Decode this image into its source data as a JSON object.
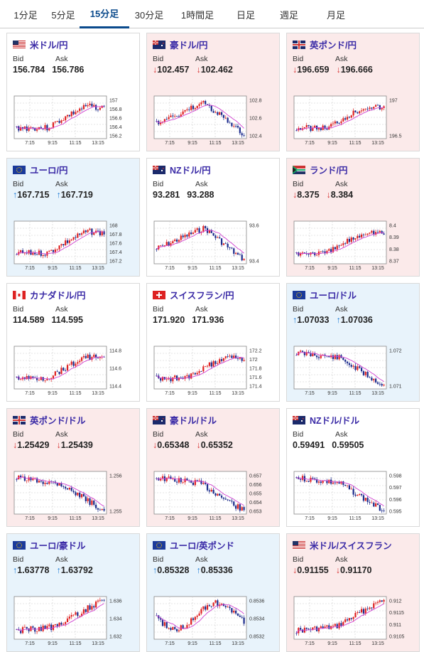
{
  "tabs": [
    {
      "label": "1分足",
      "active": false
    },
    {
      "label": "5分足",
      "active": false
    },
    {
      "label": "15分足",
      "active": true
    },
    {
      "label": "30分足",
      "active": false
    },
    {
      "label": "1時間足",
      "active": false
    },
    {
      "label": "日足",
      "active": false
    },
    {
      "label": "週足",
      "active": false
    },
    {
      "label": "月足",
      "active": false
    }
  ],
  "colors": {
    "up_bg": "#e8f3fb",
    "down_bg": "#fbeaea",
    "title": "#3a2aa6",
    "up": "#1e7bd6",
    "down": "#d63030",
    "candle_up": "#e02020",
    "candle_down": "#1a2a8c",
    "ma": "#d040d0"
  },
  "labels": {
    "bid": "Bid",
    "ask": "Ask"
  },
  "cards": [
    {
      "name": "米ドル/円",
      "flag": "us",
      "bid": "156.784",
      "ask": "156.786",
      "dir": "none",
      "bg": "neutral",
      "yticks": [
        "157",
        "156.8",
        "156.6",
        "156.4",
        "156.2"
      ],
      "xticks": [
        "7:15",
        "9:15",
        "11:15",
        "13:15"
      ],
      "trend": "rise"
    },
    {
      "name": "豪ドル/円",
      "flag": "au",
      "bid": "102.457",
      "ask": "102.462",
      "dir": "down",
      "bg": "down",
      "yticks": [
        "102.8",
        "102.6",
        "102.4"
      ],
      "xticks": [
        "7:15",
        "9:15",
        "11:15",
        "13:15"
      ],
      "trend": "peak"
    },
    {
      "name": "英ポンド/円",
      "flag": "gb",
      "bid": "196.659",
      "ask": "196.666",
      "dir": "down",
      "bg": "down",
      "yticks": [
        "197",
        "196.5"
      ],
      "xticks": [
        "7:15",
        "9:15",
        "11:15",
        "13:15"
      ],
      "trend": "rise"
    },
    {
      "name": "ユーロ/円",
      "flag": "eu",
      "bid": "167.715",
      "ask": "167.719",
      "dir": "up",
      "bg": "up",
      "yticks": [
        "168",
        "167.8",
        "167.6",
        "167.4",
        "167.2"
      ],
      "xticks": [
        "7:15",
        "9:15",
        "11:15",
        "13:15"
      ],
      "trend": "rise"
    },
    {
      "name": "NZドル/円",
      "flag": "nz",
      "bid": "93.281",
      "ask": "93.288",
      "dir": "none",
      "bg": "neutral",
      "yticks": [
        "93.6",
        "93.4"
      ],
      "xticks": [
        "7:15",
        "9:15",
        "11:15",
        "13:15"
      ],
      "trend": "peak"
    },
    {
      "name": "ランド/円",
      "flag": "za",
      "bid": "8.375",
      "ask": "8.384",
      "dir": "down",
      "bg": "down",
      "yticks": [
        "8.4",
        "8.39",
        "8.38",
        "8.37"
      ],
      "xticks": [
        "7:15",
        "9:15",
        "11:15",
        "13:15"
      ],
      "trend": "rise"
    },
    {
      "name": "カナダドル/円",
      "flag": "ca",
      "bid": "114.589",
      "ask": "114.595",
      "dir": "none",
      "bg": "neutral",
      "yticks": [
        "114.8",
        "114.6",
        "114.4"
      ],
      "xticks": [
        "7:15",
        "9:15",
        "11:15",
        "13:15"
      ],
      "trend": "rise"
    },
    {
      "name": "スイスフラン/円",
      "flag": "ch",
      "bid": "171.920",
      "ask": "171.936",
      "dir": "none",
      "bg": "neutral",
      "yticks": [
        "172.2",
        "172",
        "171.8",
        "171.6",
        "171.4"
      ],
      "xticks": [
        "7:15",
        "9:15",
        "11:15",
        "13:15"
      ],
      "trend": "rise"
    },
    {
      "name": "ユーロ/ドル",
      "flag": "eu",
      "bid": "1.07033",
      "ask": "1.07036",
      "dir": "up",
      "bg": "up",
      "yticks": [
        "1.072",
        "1.071"
      ],
      "xticks": [
        "7:15",
        "9:15",
        "11:15",
        "13:15"
      ],
      "trend": "fall"
    },
    {
      "name": "英ポンド/ドル",
      "flag": "gb",
      "bid": "1.25429",
      "ask": "1.25439",
      "dir": "down",
      "bg": "down",
      "yticks": [
        "1.256",
        "1.255"
      ],
      "xticks": [
        "7:15",
        "9:15",
        "11:15",
        "13:15"
      ],
      "trend": "fall"
    },
    {
      "name": "豪ドル/ドル",
      "flag": "au",
      "bid": "0.65348",
      "ask": "0.65352",
      "dir": "down",
      "bg": "down",
      "yticks": [
        "0.657",
        "0.656",
        "0.655",
        "0.654",
        "0.653"
      ],
      "xticks": [
        "7:15",
        "9:15",
        "11:15",
        "13:15"
      ],
      "trend": "fall"
    },
    {
      "name": "NZドル/ドル",
      "flag": "nz",
      "bid": "0.59491",
      "ask": "0.59505",
      "dir": "none",
      "bg": "neutral",
      "yticks": [
        "0.598",
        "0.597",
        "0.596",
        "0.595"
      ],
      "xticks": [
        "7:15",
        "9:15",
        "11:15",
        "13:15"
      ],
      "trend": "fall"
    },
    {
      "name": "ユーロ/豪ドル",
      "flag": "eu",
      "bid": "1.63778",
      "ask": "1.63792",
      "dir": "up",
      "bg": "up",
      "yticks": [
        "1.636",
        "1.634",
        "1.632"
      ],
      "xticks": [
        "7:15",
        "9:15",
        "11:15",
        "13:15"
      ],
      "trend": "riselate"
    },
    {
      "name": "ユーロ/英ポンド",
      "flag": "eu",
      "bid": "0.85328",
      "ask": "0.85336",
      "dir": "up",
      "bg": "up",
      "yticks": [
        "0.8536",
        "0.8534",
        "0.8532"
      ],
      "xticks": [
        "7:15",
        "9:15",
        "11:15",
        "13:15"
      ],
      "trend": "wave"
    },
    {
      "name": "米ドル/スイスフラン",
      "flag": "us",
      "bid": "0.91155",
      "ask": "0.91170",
      "dir": "down",
      "bg": "down",
      "yticks": [
        "0.912",
        "0.9115",
        "0.911",
        "0.9105"
      ],
      "xticks": [
        "7:15",
        "9:15",
        "11:15",
        "13:15"
      ],
      "trend": "riselate"
    }
  ]
}
